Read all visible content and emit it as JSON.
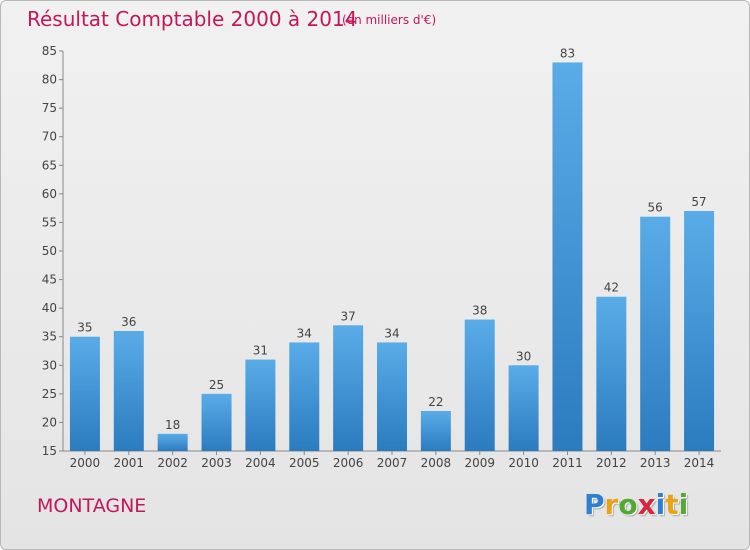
{
  "header": {
    "title": "Résultat Comptable 2000 à 2014",
    "subtitle": "(en milliers d'€)"
  },
  "footer": {
    "town": "MONTAGNE",
    "logo": {
      "letters": [
        "P",
        "r",
        "o",
        "x",
        "i",
        "t",
        "i"
      ],
      "colors": [
        "#2f7fd1",
        "#e8a317",
        "#54a934",
        "#d7263d",
        "#2f7fd1",
        "#e8a317",
        "#54a934"
      ]
    }
  },
  "chart_data": {
    "type": "bar",
    "title": "Résultat Comptable 2000 à 2014",
    "subtitle": "(en milliers d'€)",
    "categories": [
      "2000",
      "2001",
      "2002",
      "2003",
      "2004",
      "2005",
      "2006",
      "2007",
      "2008",
      "2009",
      "2010",
      "2011",
      "2012",
      "2013",
      "2014"
    ],
    "values": [
      35,
      36,
      18,
      25,
      31,
      34,
      37,
      34,
      22,
      38,
      30,
      83,
      42,
      56,
      57
    ],
    "ylim": [
      15,
      85
    ],
    "yticks": [
      15,
      20,
      25,
      30,
      35,
      40,
      45,
      50,
      55,
      60,
      65,
      70,
      75,
      80,
      85
    ],
    "grid": false,
    "colors": {
      "bar_top": "#5aace8",
      "bar_bottom": "#2b7bbf",
      "title": "#c2185b"
    }
  }
}
